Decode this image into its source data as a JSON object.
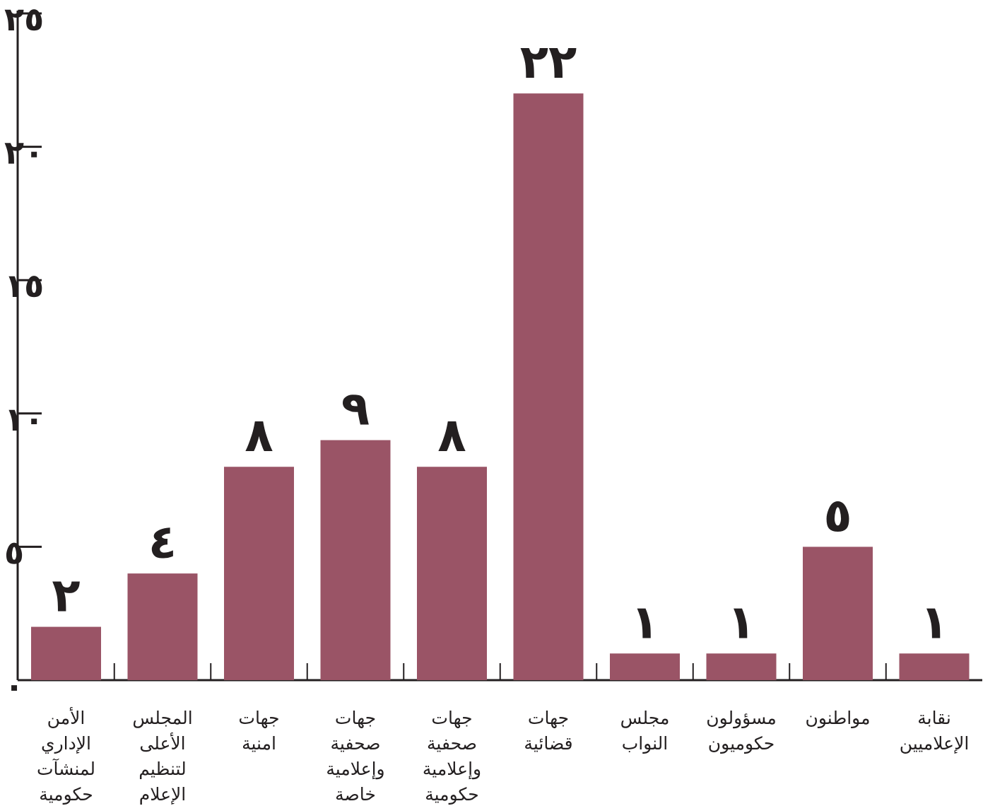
{
  "chart_data": {
    "type": "bar",
    "categories": [
      [
        "الأمن",
        "الإداري",
        "لمنشآت",
        "حكومية"
      ],
      [
        "المجلس",
        "الأعلى",
        "لتنظيم",
        "الإعلام"
      ],
      [
        "جهات",
        "امنية"
      ],
      [
        "جهات",
        "صحفية",
        "وإعلامية",
        "خاصة"
      ],
      [
        "جهات",
        "صحفية",
        "وإعلامية",
        "حكومية"
      ],
      [
        "جهات",
        "قضائية"
      ],
      [
        "مجلس",
        "النواب"
      ],
      [
        "مسؤولون",
        "حكوميون"
      ],
      [
        "مواطنون"
      ],
      [
        "نقابة",
        "الإعلاميين"
      ]
    ],
    "values": [
      2,
      4,
      8,
      9,
      8,
      22,
      1,
      1,
      5,
      1
    ],
    "value_labels": [
      "٢",
      "٤",
      "٨",
      "٩",
      "٨",
      "٢٢",
      "١",
      "١",
      "٥",
      "١"
    ],
    "ylim": [
      0,
      25
    ],
    "yticks": [
      0,
      5,
      10,
      15,
      20,
      25
    ],
    "ytick_labels": [
      "٠",
      "٥",
      "١٠",
      "١٥",
      "٢٠",
      "٢٥"
    ],
    "bar_color": "#9a5466",
    "axis_color": "#231f20",
    "grid": false,
    "title": "",
    "xlabel": "",
    "ylabel": ""
  }
}
